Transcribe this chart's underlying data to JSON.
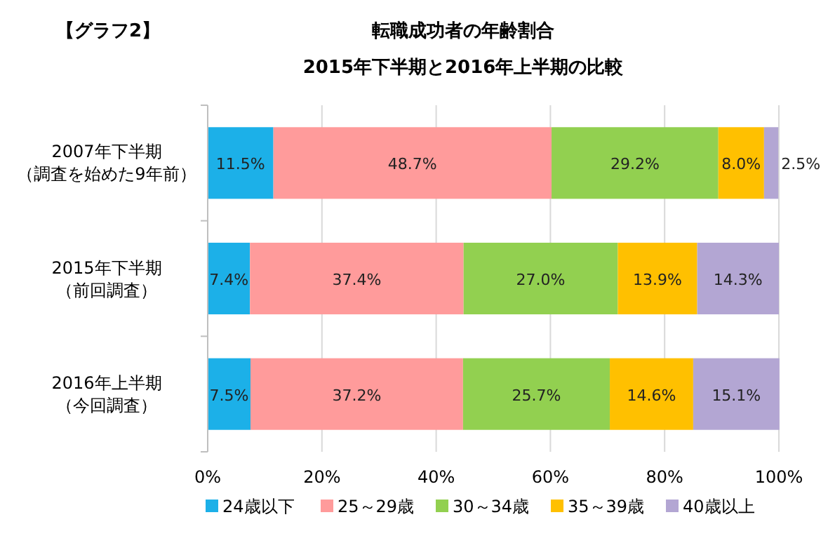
{
  "chart_data": {
    "type": "bar",
    "orientation": "horizontal",
    "stacked": true,
    "title": "転職成功者の年齢割合",
    "subtitle": "2015年下半期と2016年上半期の比較",
    "annotations": [
      "【グラフ2】"
    ],
    "categories": [
      "2007年下半期（調査を始めた9年前）",
      "2015年下半期（前回調査）",
      "2016年上半期（今回調査）"
    ],
    "series": [
      {
        "name": "24歳以下",
        "color": "#1cb0e8",
        "values": [
          11.5,
          7.4,
          7.5
        ],
        "value_labels": [
          "11.5%",
          "7.4%",
          "7.5%"
        ]
      },
      {
        "name": "25～29歳",
        "color": "#ff9b9b",
        "values": [
          48.7,
          37.4,
          37.2
        ],
        "value_labels": [
          "48.7%",
          "37.4%",
          "37.2%"
        ]
      },
      {
        "name": "30～34歳",
        "color": "#92d050",
        "values": [
          29.2,
          27.0,
          25.7
        ],
        "value_labels": [
          "29.2%",
          "27.0%",
          "25.7%"
        ]
      },
      {
        "name": "35～39歳",
        "color": "#ffc000",
        "values": [
          8.0,
          13.9,
          14.6
        ],
        "value_labels": [
          "8.0%",
          "13.9%",
          "14.6%"
        ]
      },
      {
        "name": "40歳以上",
        "color": "#b3a6d3",
        "values": [
          2.5,
          14.3,
          15.1
        ],
        "value_labels": [
          "2.5%",
          "14.3%",
          "15.1%"
        ]
      }
    ],
    "xlim": [
      0,
      100
    ],
    "xticks": [
      {
        "value": 0,
        "label": "0%"
      },
      {
        "value": 20,
        "label": "20%"
      },
      {
        "value": 40,
        "label": "40%"
      },
      {
        "value": 60,
        "label": "60%"
      },
      {
        "value": 80,
        "label": "80%"
      },
      {
        "value": 100,
        "label": "100%"
      }
    ],
    "grid": "x",
    "legend": "bottom"
  }
}
